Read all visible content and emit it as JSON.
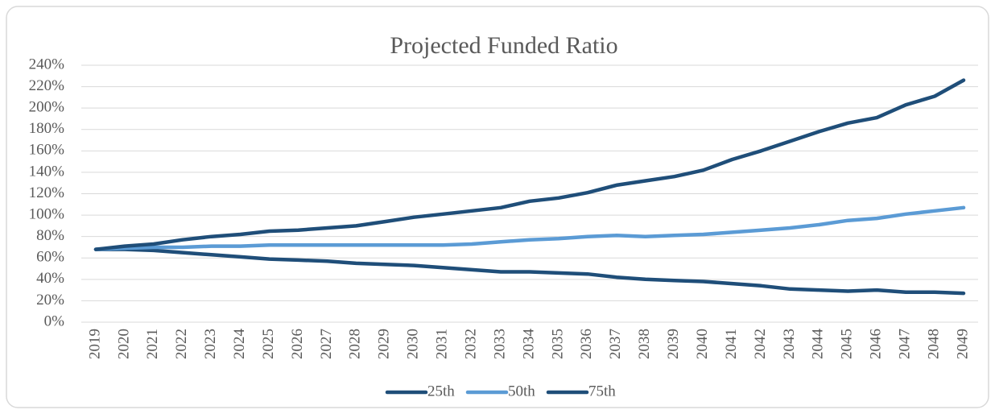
{
  "chart_data": {
    "type": "line",
    "title": "Projected Funded Ratio",
    "categories": [
      "2019",
      "2020",
      "2021",
      "2022",
      "2023",
      "2024",
      "2025",
      "2026",
      "2027",
      "2028",
      "2029",
      "2030",
      "2031",
      "2032",
      "2033",
      "2034",
      "2035",
      "2036",
      "2037",
      "2038",
      "2039",
      "2040",
      "2041",
      "2042",
      "2043",
      "2044",
      "2045",
      "2046",
      "2047",
      "2048",
      "2049"
    ],
    "series": [
      {
        "name": "25th",
        "color": "#1f4e79",
        "values": [
          68,
          68,
          67,
          65,
          63,
          61,
          59,
          58,
          57,
          55,
          54,
          53,
          51,
          49,
          47,
          47,
          46,
          45,
          42,
          40,
          39,
          38,
          36,
          34,
          31,
          30,
          29,
          30,
          28,
          28,
          27
        ]
      },
      {
        "name": "50th",
        "color": "#5b9bd5",
        "values": [
          68,
          69,
          70,
          70,
          71,
          71,
          72,
          72,
          72,
          72,
          72,
          72,
          72,
          73,
          75,
          77,
          78,
          80,
          81,
          80,
          81,
          82,
          84,
          86,
          88,
          91,
          95,
          97,
          101,
          104,
          107
        ]
      },
      {
        "name": "75th",
        "color": "#1f4e79",
        "values": [
          68,
          71,
          73,
          77,
          80,
          82,
          85,
          86,
          88,
          90,
          94,
          98,
          101,
          104,
          107,
          113,
          116,
          121,
          128,
          132,
          136,
          142,
          152,
          160,
          169,
          178,
          186,
          191,
          203,
          211,
          226
        ]
      }
    ],
    "ylim": [
      0,
      240
    ],
    "yticks": [
      {
        "value": 0,
        "label": "0%"
      },
      {
        "value": 20,
        "label": "20%"
      },
      {
        "value": 40,
        "label": "40%"
      },
      {
        "value": 60,
        "label": "60%"
      },
      {
        "value": 80,
        "label": "80%"
      },
      {
        "value": 100,
        "label": "100%"
      },
      {
        "value": 120,
        "label": "120%"
      },
      {
        "value": 140,
        "label": "140%"
      },
      {
        "value": 160,
        "label": "160%"
      },
      {
        "value": 180,
        "label": "180%"
      },
      {
        "value": 200,
        "label": "200%"
      },
      {
        "value": 220,
        "label": "220%"
      },
      {
        "value": 240,
        "label": "240%"
      }
    ],
    "grid": true,
    "legend": "bottom"
  }
}
